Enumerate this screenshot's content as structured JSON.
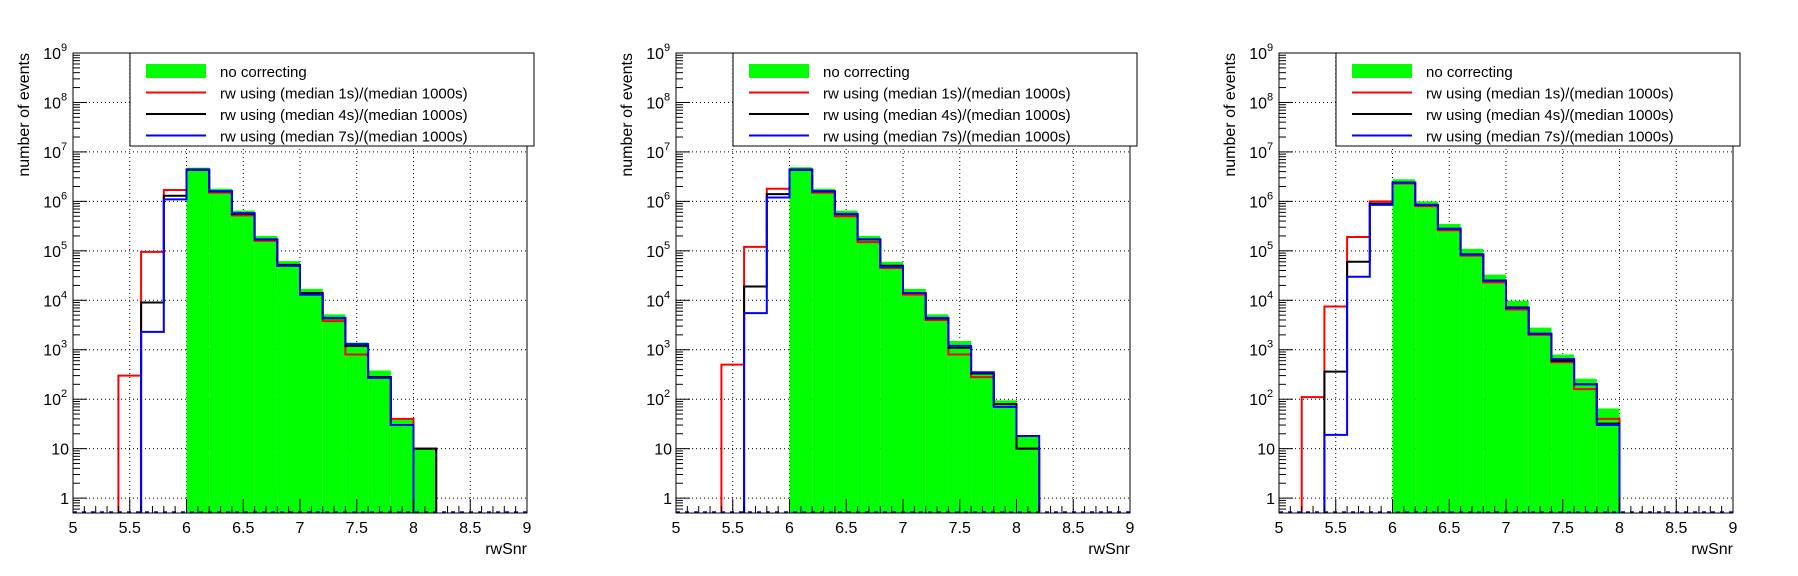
{
  "colors": {
    "no_correcting": "#00ff00",
    "rw_1s": "#ff0000",
    "rw_4s": "#000000",
    "rw_7s": "#0000ff",
    "grid": "#000000"
  },
  "chart_data": [
    {
      "type": "bar",
      "histogram": true,
      "title": "",
      "xlabel": "rwSnr",
      "ylabel": "number of events",
      "log_y": true,
      "xlim": [
        5,
        9
      ],
      "ylim": [
        0.5,
        1000000000
      ],
      "grid": true,
      "legend_position": "top",
      "bin_width": 0.2,
      "x_ticks": [
        "5",
        "5.5",
        "6",
        "6.5",
        "7",
        "7.5",
        "8",
        "8.5",
        "9"
      ],
      "y_ticks": [
        {
          "base": "1",
          "exp": ""
        },
        {
          "base": "10",
          "exp": ""
        },
        {
          "base": "10",
          "exp": "2"
        },
        {
          "base": "10",
          "exp": "3"
        },
        {
          "base": "10",
          "exp": "4"
        },
        {
          "base": "10",
          "exp": "5"
        },
        {
          "base": "10",
          "exp": "6"
        },
        {
          "base": "10",
          "exp": "7"
        },
        {
          "base": "10",
          "exp": "8"
        },
        {
          "base": "10",
          "exp": "9"
        }
      ],
      "series": [
        {
          "name": "no correcting",
          "style": "fill",
          "color": "#00ff00",
          "bins": [
            [
              6.0,
              4800000
            ],
            [
              6.2,
              1800000
            ],
            [
              6.4,
              650000
            ],
            [
              6.6,
              200000
            ],
            [
              6.8,
              62000
            ],
            [
              7.0,
              17000
            ],
            [
              7.2,
              5200
            ],
            [
              7.4,
              1400
            ],
            [
              7.6,
              380
            ],
            [
              7.8,
              40
            ],
            [
              8.0,
              10
            ]
          ]
        },
        {
          "name": "rw using (median 1s)/(median 1000s)",
          "style": "line",
          "color": "#ff0000",
          "bins": [
            [
              5.4,
              300
            ],
            [
              5.6,
              95000
            ],
            [
              5.8,
              1700000
            ],
            [
              6.0,
              4400000
            ],
            [
              6.2,
              1500000
            ],
            [
              6.4,
              520000
            ],
            [
              6.6,
              160000
            ],
            [
              6.8,
              50000
            ],
            [
              7.0,
              13000
            ],
            [
              7.2,
              3800
            ],
            [
              7.4,
              800
            ],
            [
              7.6,
              280
            ],
            [
              7.8,
              40
            ],
            [
              8.0,
              10
            ]
          ]
        },
        {
          "name": "rw using (median 4s)/(median 1000s)",
          "style": "line",
          "color": "#000000",
          "bins": [
            [
              5.6,
              9000
            ],
            [
              5.8,
              1300000
            ],
            [
              6.0,
              4400000
            ],
            [
              6.2,
              1600000
            ],
            [
              6.4,
              560000
            ],
            [
              6.6,
              170000
            ],
            [
              6.8,
              52000
            ],
            [
              7.0,
              14000
            ],
            [
              7.2,
              4300
            ],
            [
              7.4,
              1200
            ],
            [
              7.6,
              280
            ],
            [
              7.8,
              30
            ],
            [
              8.0,
              10
            ]
          ]
        },
        {
          "name": "rw using (median 7s)/(median 1000s)",
          "style": "line",
          "color": "#0000ff",
          "bins": [
            [
              5.6,
              2300
            ],
            [
              5.8,
              1100000
            ],
            [
              6.0,
              4300000
            ],
            [
              6.2,
              1600000
            ],
            [
              6.4,
              580000
            ],
            [
              6.6,
              170000
            ],
            [
              6.8,
              50000
            ],
            [
              7.0,
              13000
            ],
            [
              7.2,
              4400
            ],
            [
              7.4,
              1300
            ],
            [
              7.6,
              270
            ],
            [
              7.8,
              30
            ]
          ]
        }
      ]
    },
    {
      "type": "bar",
      "histogram": true,
      "title": "",
      "xlabel": "rwSnr",
      "ylabel": "number of events",
      "log_y": true,
      "xlim": [
        5,
        9
      ],
      "ylim": [
        0.5,
        1000000000
      ],
      "grid": true,
      "legend_position": "top",
      "bin_width": 0.2,
      "x_ticks": [
        "5",
        "5.5",
        "6",
        "6.5",
        "7",
        "7.5",
        "8",
        "8.5",
        "9"
      ],
      "y_ticks": [
        {
          "base": "1",
          "exp": ""
        },
        {
          "base": "10",
          "exp": ""
        },
        {
          "base": "10",
          "exp": "2"
        },
        {
          "base": "10",
          "exp": "3"
        },
        {
          "base": "10",
          "exp": "4"
        },
        {
          "base": "10",
          "exp": "5"
        },
        {
          "base": "10",
          "exp": "6"
        },
        {
          "base": "10",
          "exp": "7"
        },
        {
          "base": "10",
          "exp": "8"
        },
        {
          "base": "10",
          "exp": "9"
        }
      ],
      "series": [
        {
          "name": "no correcting",
          "style": "fill",
          "color": "#00ff00",
          "bins": [
            [
              6.0,
              4900000
            ],
            [
              6.2,
              1800000
            ],
            [
              6.4,
              650000
            ],
            [
              6.6,
              200000
            ],
            [
              6.8,
              60000
            ],
            [
              7.0,
              17000
            ],
            [
              7.2,
              5200
            ],
            [
              7.4,
              1500
            ],
            [
              7.6,
              360
            ],
            [
              7.8,
              95
            ],
            [
              8.0,
              18
            ]
          ]
        },
        {
          "name": "rw using (median 1s)/(median 1000s)",
          "style": "line",
          "color": "#ff0000",
          "bins": [
            [
              5.4,
              500
            ],
            [
              5.6,
              120000
            ],
            [
              5.8,
              1800000
            ],
            [
              6.0,
              4400000
            ],
            [
              6.2,
              1500000
            ],
            [
              6.4,
              500000
            ],
            [
              6.6,
              150000
            ],
            [
              6.8,
              45000
            ],
            [
              7.0,
              13000
            ],
            [
              7.2,
              4000
            ],
            [
              7.4,
              800
            ],
            [
              7.6,
              280
            ],
            [
              7.8,
              70
            ],
            [
              8.0,
              10
            ]
          ]
        },
        {
          "name": "rw using (median 4s)/(median 1000s)",
          "style": "line",
          "color": "#000000",
          "bins": [
            [
              5.6,
              19000
            ],
            [
              5.8,
              1400000
            ],
            [
              6.0,
              4400000
            ],
            [
              6.2,
              1600000
            ],
            [
              6.4,
              550000
            ],
            [
              6.6,
              170000
            ],
            [
              6.8,
              50000
            ],
            [
              7.0,
              14000
            ],
            [
              7.2,
              4300
            ],
            [
              7.4,
              1100
            ],
            [
              7.6,
              330
            ],
            [
              7.8,
              80
            ],
            [
              8.0,
              10
            ]
          ]
        },
        {
          "name": "rw using (median 7s)/(median 1000s)",
          "style": "line",
          "color": "#0000ff",
          "bins": [
            [
              5.6,
              5500
            ],
            [
              5.8,
              1200000
            ],
            [
              6.0,
              4300000
            ],
            [
              6.2,
              1600000
            ],
            [
              6.4,
              560000
            ],
            [
              6.6,
              170000
            ],
            [
              6.8,
              48000
            ],
            [
              7.0,
              14000
            ],
            [
              7.2,
              4400
            ],
            [
              7.4,
              1200
            ],
            [
              7.6,
              350
            ],
            [
              7.8,
              70
            ],
            [
              8.0,
              18
            ]
          ]
        }
      ]
    },
    {
      "type": "bar",
      "histogram": true,
      "title": "",
      "xlabel": "rwSnr",
      "ylabel": "number of events",
      "log_y": true,
      "xlim": [
        5,
        9
      ],
      "ylim": [
        0.5,
        1000000000
      ],
      "grid": true,
      "legend_position": "top",
      "bin_width": 0.2,
      "x_ticks": [
        "5",
        "5.5",
        "6",
        "6.5",
        "7",
        "7.5",
        "8",
        "8.5",
        "9"
      ],
      "y_ticks": [
        {
          "base": "1",
          "exp": ""
        },
        {
          "base": "10",
          "exp": ""
        },
        {
          "base": "10",
          "exp": "2"
        },
        {
          "base": "10",
          "exp": "3"
        },
        {
          "base": "10",
          "exp": "4"
        },
        {
          "base": "10",
          "exp": "5"
        },
        {
          "base": "10",
          "exp": "6"
        },
        {
          "base": "10",
          "exp": "7"
        },
        {
          "base": "10",
          "exp": "8"
        },
        {
          "base": "10",
          "exp": "9"
        }
      ],
      "series": [
        {
          "name": "no correcting",
          "style": "fill",
          "color": "#00ff00",
          "bins": [
            [
              6.0,
              2800000
            ],
            [
              6.2,
              1000000
            ],
            [
              6.4,
              350000
            ],
            [
              6.6,
              110000
            ],
            [
              6.8,
              33000
            ],
            [
              7.0,
              9800
            ],
            [
              7.2,
              2800
            ],
            [
              7.4,
              800
            ],
            [
              7.6,
              260
            ],
            [
              7.8,
              65
            ]
          ]
        },
        {
          "name": "rw using (median 1s)/(median 1000s)",
          "style": "line",
          "color": "#ff0000",
          "bins": [
            [
              5.2,
              110
            ],
            [
              5.4,
              7500
            ],
            [
              5.6,
              190000
            ],
            [
              5.8,
              1000000
            ],
            [
              6.0,
              2300000
            ],
            [
              6.2,
              800000
            ],
            [
              6.4,
              260000
            ],
            [
              6.6,
              80000
            ],
            [
              6.8,
              23000
            ],
            [
              7.0,
              6500
            ],
            [
              7.2,
              2000
            ],
            [
              7.4,
              560
            ],
            [
              7.6,
              160
            ],
            [
              7.8,
              40
            ]
          ]
        },
        {
          "name": "rw using (median 4s)/(median 1000s)",
          "style": "line",
          "color": "#000000",
          "bins": [
            [
              5.4,
              360
            ],
            [
              5.6,
              60000
            ],
            [
              5.8,
              900000
            ],
            [
              6.0,
              2400000
            ],
            [
              6.2,
              850000
            ],
            [
              6.4,
              280000
            ],
            [
              6.6,
              85000
            ],
            [
              6.8,
              25000
            ],
            [
              7.0,
              7200
            ],
            [
              7.2,
              2100
            ],
            [
              7.4,
              600
            ],
            [
              7.6,
              200
            ],
            [
              7.8,
              32
            ]
          ]
        },
        {
          "name": "rw using (median 7s)/(median 1000s)",
          "style": "line",
          "color": "#0000ff",
          "bins": [
            [
              5.4,
              19
            ],
            [
              5.6,
              30000
            ],
            [
              5.8,
              850000
            ],
            [
              6.0,
              2400000
            ],
            [
              6.2,
              850000
            ],
            [
              6.4,
              280000
            ],
            [
              6.6,
              85000
            ],
            [
              6.8,
              25000
            ],
            [
              7.0,
              7000
            ],
            [
              7.2,
              2100
            ],
            [
              7.4,
              650
            ],
            [
              7.6,
              200
            ],
            [
              7.8,
              30
            ]
          ]
        }
      ]
    }
  ]
}
